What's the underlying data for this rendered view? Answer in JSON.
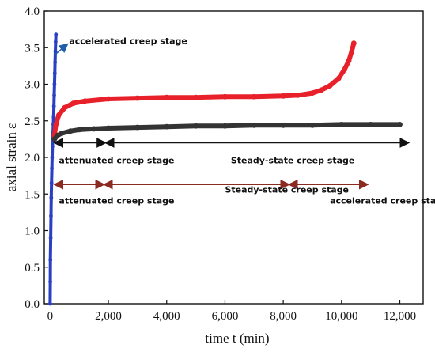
{
  "chart_data": {
    "type": "scatter",
    "xlabel": "time t (min)",
    "ylabel": "axial strain ε",
    "xlim": [
      -200,
      12800
    ],
    "ylim": [
      0,
      4.0
    ],
    "x_ticks": [
      0,
      2000,
      4000,
      6000,
      8000,
      10000,
      12000
    ],
    "x_tick_labels": [
      "0",
      "2,000",
      "4,000",
      "6,000",
      "8,000",
      "10,000",
      "12,000"
    ],
    "y_ticks": [
      0.0,
      0.5,
      1.0,
      1.5,
      2.0,
      2.5,
      3.0,
      3.5,
      4.0
    ],
    "y_tick_labels": [
      "0.0",
      "0.5",
      "1.0",
      "1.5",
      "2.0",
      "2.5",
      "3.0",
      "3.5",
      "4.0"
    ],
    "grid": false,
    "series": [
      {
        "color": "#2a3fc4",
        "x": [
          0,
          5,
          10,
          20,
          30,
          40,
          50,
          60,
          70,
          80,
          90,
          100,
          110,
          120,
          130,
          140,
          150,
          160,
          170,
          180,
          190,
          200
        ],
        "y": [
          0.0,
          0.3,
          0.6,
          0.9,
          1.2,
          1.45,
          1.65,
          1.85,
          2.0,
          2.15,
          2.25,
          2.35,
          2.45,
          2.55,
          2.7,
          2.85,
          3.0,
          3.15,
          3.3,
          3.45,
          3.58,
          3.68
        ]
      },
      {
        "color": "#e8202a",
        "x": [
          150,
          200,
          300,
          500,
          800,
          1200,
          2000,
          3000,
          4000,
          5000,
          6000,
          7000,
          8000,
          8500,
          9000,
          9300,
          9600,
          9900,
          10100,
          10250,
          10350,
          10420
        ],
        "y": [
          2.3,
          2.45,
          2.58,
          2.68,
          2.74,
          2.77,
          2.8,
          2.81,
          2.82,
          2.82,
          2.83,
          2.83,
          2.84,
          2.85,
          2.88,
          2.92,
          2.98,
          3.08,
          3.2,
          3.32,
          3.45,
          3.56
        ]
      },
      {
        "color": "#333333",
        "x": [
          150,
          250,
          400,
          700,
          1000,
          1500,
          2000,
          3000,
          4000,
          5000,
          6000,
          7000,
          8000,
          9000,
          10000,
          11000,
          12000
        ],
        "y": [
          2.25,
          2.3,
          2.33,
          2.36,
          2.38,
          2.39,
          2.4,
          2.41,
          2.42,
          2.43,
          2.43,
          2.44,
          2.44,
          2.44,
          2.45,
          2.45,
          2.45
        ]
      }
    ],
    "annotations": [
      {
        "text": "accelerated creep stage",
        "x": 650,
        "y": 3.55,
        "color": "#1f5fa8",
        "arrow_from": [
          150,
          3.4
        ],
        "arrow_to": [
          600,
          3.55
        ]
      },
      {
        "text": "attenuated creep stage",
        "x": 300,
        "y": 1.92,
        "color": "#111111"
      },
      {
        "text": "Steady-state creep stage",
        "x": 6200,
        "y": 1.92,
        "color": "#111111"
      },
      {
        "text": "attenuated creep stage",
        "x": 300,
        "y": 1.37,
        "color": "#111111"
      },
      {
        "text": "Steady-state creep stage",
        "x": 6000,
        "y": 1.52,
        "color": "#111111"
      },
      {
        "text": "accelerated creep stage",
        "x": 9600,
        "y": 1.37,
        "color": "#111111"
      }
    ],
    "stage_arrows": [
      {
        "from": 150,
        "to": 1900,
        "y": 2.2,
        "color": "#111111"
      },
      {
        "from": 1900,
        "to": 12300,
        "y": 2.2,
        "color": "#111111"
      },
      {
        "from": 150,
        "to": 1850,
        "y": 1.63,
        "color": "#8b2a20"
      },
      {
        "from": 1850,
        "to": 8200,
        "y": 1.63,
        "color": "#8b2a20"
      },
      {
        "from": 8200,
        "to": 10900,
        "y": 1.63,
        "color": "#8b2a20"
      }
    ]
  }
}
